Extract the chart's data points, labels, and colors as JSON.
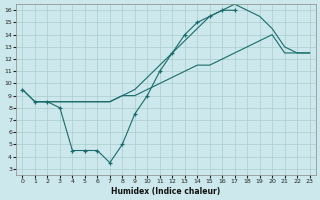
{
  "xlabel": "Humidex (Indice chaleur)",
  "bg_color": "#cce8ec",
  "grid_color": "#aacccc",
  "line_color": "#1a6b6b",
  "xlim": [
    -0.5,
    23.5
  ],
  "ylim": [
    2.5,
    16.5
  ],
  "xticks": [
    0,
    1,
    2,
    3,
    4,
    5,
    6,
    7,
    8,
    9,
    10,
    11,
    12,
    13,
    14,
    15,
    16,
    17,
    18,
    19,
    20,
    21,
    22,
    23
  ],
  "yticks": [
    3,
    4,
    5,
    6,
    7,
    8,
    9,
    10,
    11,
    12,
    13,
    14,
    15,
    16
  ],
  "series": [
    {
      "x": [
        0,
        1,
        2,
        3,
        4,
        5,
        6,
        7,
        8,
        9,
        10,
        11,
        12,
        13,
        14,
        15,
        16,
        17,
        18,
        19,
        20,
        21,
        22,
        23
      ],
      "y": [
        9.5,
        8.5,
        8.5,
        8.5,
        8.5,
        8.5,
        8.5,
        8.5,
        9.0,
        9.5,
        10.5,
        11.5,
        12.5,
        13.5,
        14.5,
        15.5,
        16.0,
        16.5,
        16.0,
        15.5,
        14.5,
        13.0,
        12.5,
        12.5
      ],
      "has_markers": false
    },
    {
      "x": [
        0,
        1,
        2,
        3,
        4,
        5,
        6,
        7,
        8,
        9,
        10,
        11,
        12,
        13,
        14,
        15,
        16,
        17
      ],
      "y": [
        9.5,
        8.5,
        8.5,
        8.0,
        4.5,
        4.5,
        4.5,
        3.5,
        5.0,
        7.5,
        9.0,
        11.0,
        12.5,
        14.0,
        15.0,
        15.5,
        16.0,
        16.0
      ],
      "has_markers": true
    },
    {
      "x": [
        1,
        2,
        3,
        4,
        5,
        6,
        7,
        8,
        9,
        10,
        11,
        12,
        13,
        14,
        15,
        16,
        17,
        18,
        19,
        20,
        21,
        22,
        23
      ],
      "y": [
        8.5,
        8.5,
        8.5,
        8.5,
        8.5,
        8.5,
        8.5,
        9.0,
        9.0,
        9.5,
        10.0,
        10.5,
        11.0,
        11.5,
        11.5,
        12.0,
        12.5,
        13.0,
        13.5,
        14.0,
        12.5,
        12.5,
        12.5
      ],
      "has_markers": false
    }
  ]
}
